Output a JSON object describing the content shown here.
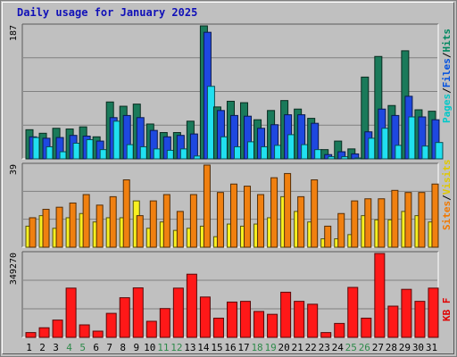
{
  "title": "Daily usage for January 2025",
  "chart_data": [
    {
      "type": "bar",
      "panel": "hits-files-pages",
      "ymax_label": "187",
      "ylim": [
        0,
        187
      ],
      "right_label_parts": [
        {
          "text": "Pages",
          "color": "#00c8c8"
        },
        {
          "text": "/",
          "color": "#000000"
        },
        {
          "text": "Files",
          "color": "#0050e0"
        },
        {
          "text": "/",
          "color": "#000000"
        },
        {
          "text": "Hits",
          "color": "#008860"
        }
      ],
      "categories": [
        "1",
        "2",
        "3",
        "4",
        "5",
        "6",
        "7",
        "8",
        "9",
        "10",
        "11",
        "12",
        "13",
        "14",
        "15",
        "16",
        "17",
        "18",
        "19",
        "20",
        "21",
        "22",
        "23",
        "24",
        "25",
        "26",
        "27",
        "28",
        "29",
        "30",
        "31"
      ],
      "series": [
        {
          "name": "Hits",
          "color": "#1a7a5a",
          "values": [
            41,
            36,
            43,
            42,
            45,
            31,
            80,
            74,
            77,
            49,
            37,
            37,
            53,
            187,
            73,
            81,
            79,
            55,
            68,
            82,
            70,
            57,
            13,
            25,
            14,
            115,
            144,
            75,
            152,
            69,
            67
          ]
        },
        {
          "name": "Files",
          "color": "#1e48e0",
          "values": [
            31,
            29,
            30,
            33,
            32,
            25,
            58,
            61,
            58,
            40,
            31,
            33,
            35,
            178,
            68,
            61,
            60,
            43,
            48,
            62,
            62,
            50,
            6,
            10,
            7,
            38,
            70,
            61,
            88,
            59,
            55
          ]
        },
        {
          "name": "Pages",
          "color": "#20e0f0",
          "values": [
            30,
            17,
            10,
            22,
            27,
            13,
            53,
            20,
            17,
            14,
            12,
            14,
            4,
            102,
            31,
            17,
            24,
            17,
            19,
            34,
            20,
            13,
            3,
            3,
            1,
            29,
            43,
            19,
            59,
            18,
            23
          ]
        }
      ]
    },
    {
      "type": "bar",
      "panel": "visits-sites",
      "ymax_label": "39",
      "ylim": [
        0,
        39
      ],
      "right_label_parts": [
        {
          "text": "Sites",
          "color": "#f07800"
        },
        {
          "text": "/",
          "color": "#000000"
        },
        {
          "text": "Visits",
          "color": "#e0c800"
        }
      ],
      "categories": [
        "1",
        "2",
        "3",
        "4",
        "5",
        "6",
        "7",
        "8",
        "9",
        "10",
        "11",
        "12",
        "13",
        "14",
        "15",
        "16",
        "17",
        "18",
        "19",
        "20",
        "21",
        "22",
        "23",
        "24",
        "25",
        "26",
        "27",
        "28",
        "29",
        "30",
        "31"
      ],
      "series": [
        {
          "name": "Visits",
          "color": "#f8f020",
          "values": [
            10,
            15,
            9,
            14,
            16,
            12,
            14,
            14,
            22,
            9,
            12,
            8,
            9,
            10,
            5,
            11,
            10,
            11,
            14,
            24,
            17,
            12,
            4,
            4,
            6,
            15,
            13,
            13,
            17,
            15,
            12
          ]
        },
        {
          "name": "Sites",
          "color": "#f08010",
          "values": [
            14,
            18,
            19,
            21,
            25,
            20,
            24,
            32,
            15,
            22,
            25,
            17,
            25,
            39,
            26,
            30,
            29,
            25,
            33,
            35,
            24,
            32,
            10,
            16,
            22,
            23,
            23,
            27,
            26,
            26,
            30
          ]
        }
      ]
    },
    {
      "type": "bar",
      "panel": "kbytes",
      "ymax_label": "349270",
      "ylim": [
        0,
        349270
      ],
      "right_label_parts": [
        {
          "text": "KB F",
          "color": "#e00000"
        }
      ],
      "categories": [
        "1",
        "2",
        "3",
        "4",
        "5",
        "6",
        "7",
        "8",
        "9",
        "10",
        "11",
        "12",
        "13",
        "14",
        "15",
        "16",
        "17",
        "18",
        "19",
        "20",
        "21",
        "22",
        "23",
        "24",
        "25",
        "26",
        "27",
        "28",
        "29",
        "30",
        "31"
      ],
      "series": [
        {
          "name": "KB F",
          "color": "#ff1818",
          "values": [
            20000,
            40000,
            72000,
            205000,
            52000,
            26000,
            100000,
            165000,
            206000,
            67000,
            120000,
            205000,
            263000,
            168000,
            80000,
            147000,
            150000,
            108000,
            96000,
            188000,
            150000,
            138000,
            20000,
            58000,
            208000,
            80000,
            349270,
            130000,
            200000,
            150000,
            205000
          ]
        }
      ]
    }
  ],
  "x_labels": [
    {
      "text": "1",
      "color": "#000000"
    },
    {
      "text": "2",
      "color": "#000000"
    },
    {
      "text": "3",
      "color": "#000000"
    },
    {
      "text": "4",
      "color": "#2e8a4a"
    },
    {
      "text": "5",
      "color": "#2e8a4a"
    },
    {
      "text": "6",
      "color": "#000000"
    },
    {
      "text": "7",
      "color": "#000000"
    },
    {
      "text": "8",
      "color": "#000000"
    },
    {
      "text": "9",
      "color": "#000000"
    },
    {
      "text": "10",
      "color": "#000000"
    },
    {
      "text": "11",
      "color": "#2e8a4a"
    },
    {
      "text": "12",
      "color": "#2e8a4a"
    },
    {
      "text": "13",
      "color": "#000000"
    },
    {
      "text": "14",
      "color": "#000000"
    },
    {
      "text": "15",
      "color": "#000000"
    },
    {
      "text": "16",
      "color": "#000000"
    },
    {
      "text": "17",
      "color": "#000000"
    },
    {
      "text": "18",
      "color": "#2e8a4a"
    },
    {
      "text": "19",
      "color": "#2e8a4a"
    },
    {
      "text": "20",
      "color": "#000000"
    },
    {
      "text": "21",
      "color": "#000000"
    },
    {
      "text": "22",
      "color": "#000000"
    },
    {
      "text": "23",
      "color": "#000000"
    },
    {
      "text": "24",
      "color": "#000000"
    },
    {
      "text": "25",
      "color": "#2e8a4a"
    },
    {
      "text": "26",
      "color": "#2e8a4a"
    },
    {
      "text": "27",
      "color": "#000000"
    },
    {
      "text": "28",
      "color": "#000000"
    },
    {
      "text": "29",
      "color": "#000000"
    },
    {
      "text": "30",
      "color": "#000000"
    },
    {
      "text": "31",
      "color": "#000000"
    }
  ]
}
